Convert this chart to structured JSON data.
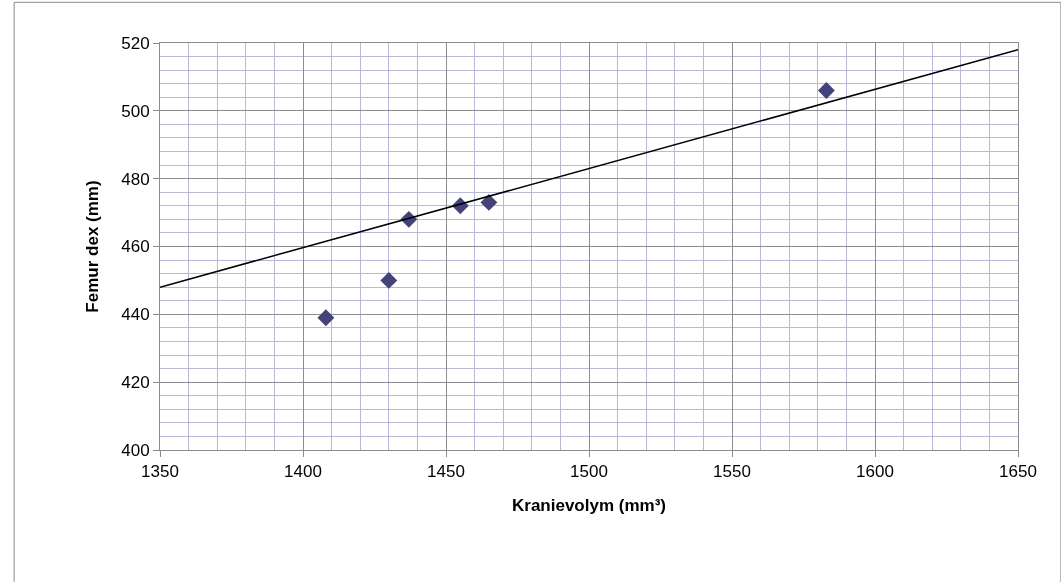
{
  "chart_data": {
    "type": "scatter",
    "xlabel": "Kranievolym (mm³)",
    "ylabel": "Femur dex (mm)",
    "series": [
      {
        "color": "#43437a",
        "marker": "diamond",
        "x": [
          1408,
          1430,
          1437,
          1455,
          1465,
          1583
        ],
        "values": [
          439,
          450,
          468,
          472,
          473,
          506
        ]
      },
      {
        "type": "line",
        "color": "#000000",
        "marker": "none",
        "line_style": "solid",
        "x": [
          1350,
          1650
        ],
        "values": [
          448,
          518
        ]
      }
    ],
    "xlim": [
      1350,
      1650
    ],
    "xticks": [
      1350,
      1400,
      1450,
      1500,
      1550,
      1600,
      1650
    ],
    "ylim": [
      400,
      520
    ],
    "yticks": [
      400,
      420,
      440,
      460,
      480,
      500,
      520
    ],
    "grid": true
  }
}
